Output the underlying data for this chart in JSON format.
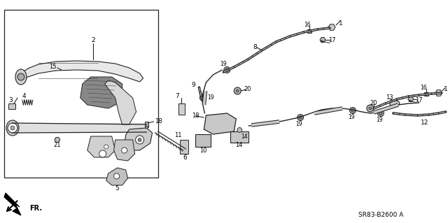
{
  "background_color": "#ffffff",
  "diagram_code": "SR83-B2600 A",
  "fr_label": "FR.",
  "line_color": "#222222",
  "fig_width": 6.4,
  "fig_height": 3.19,
  "dpi": 100
}
